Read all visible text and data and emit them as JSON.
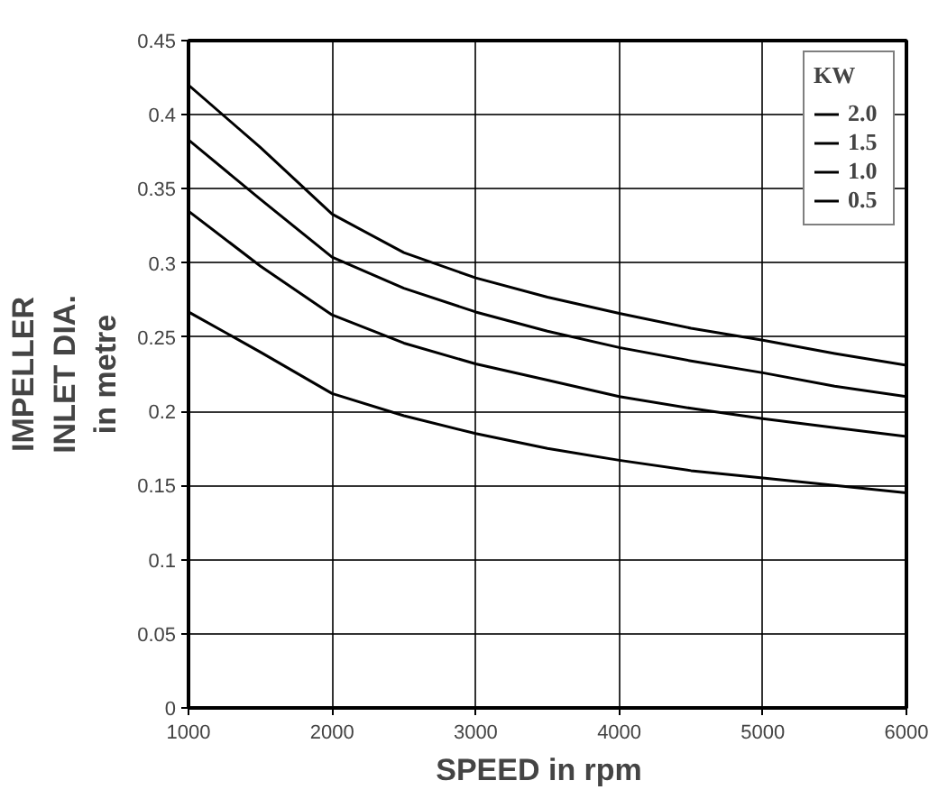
{
  "chart_data": {
    "type": "line",
    "xlabel": "SPEED  in  rpm",
    "ylabel": "IMPELLER\nINLET DIA.\nin metre",
    "legend_title": "KW",
    "x": [
      1000,
      1500,
      2000,
      2500,
      3000,
      3500,
      4000,
      4500,
      5000,
      5500,
      6000
    ],
    "series": [
      {
        "name": "2.0",
        "color": "#000000",
        "values": [
          0.42,
          0.378,
          0.333,
          0.307,
          0.29,
          0.277,
          0.266,
          0.256,
          0.248,
          0.239,
          0.231
        ]
      },
      {
        "name": "1.5",
        "color": "#000000",
        "values": [
          0.383,
          0.343,
          0.304,
          0.283,
          0.267,
          0.254,
          0.243,
          0.234,
          0.226,
          0.217,
          0.21
        ]
      },
      {
        "name": "1.0",
        "color": "#000000",
        "values": [
          0.335,
          0.298,
          0.265,
          0.246,
          0.232,
          0.221,
          0.21,
          0.202,
          0.195,
          0.189,
          0.183
        ]
      },
      {
        "name": "0.5",
        "color": "#000000",
        "values": [
          0.267,
          0.24,
          0.212,
          0.197,
          0.185,
          0.175,
          0.167,
          0.16,
          0.155,
          0.15,
          0.145
        ]
      }
    ],
    "xlim": [
      1000,
      6000
    ],
    "xticks": [
      1000,
      2000,
      3000,
      4000,
      5000,
      6000
    ],
    "ylim": [
      0,
      0.45
    ],
    "yticks": [
      0,
      0.05,
      0.1,
      0.15,
      0.2,
      0.25,
      0.3,
      0.35,
      0.4,
      0.45
    ],
    "grid": true,
    "legend": "top right",
    "marker": "none",
    "line_style": "solid"
  }
}
